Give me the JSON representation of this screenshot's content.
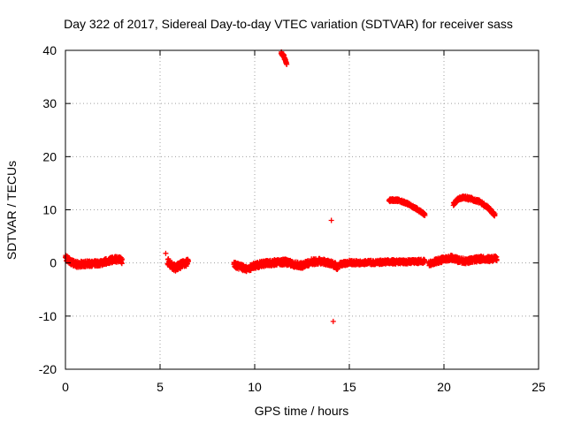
{
  "chart_data": {
    "type": "scatter",
    "title": "Day 322 of 2017, Sidereal Day-to-day VTEC variation (SDTVAR) for receiver sass",
    "xlabel": "GPS time / hours",
    "ylabel": "SDTVAR / TECUs",
    "xlim": [
      0,
      25
    ],
    "ylim": [
      -20,
      40
    ],
    "x_ticks": [
      0,
      5,
      10,
      15,
      20,
      25
    ],
    "y_ticks": [
      -20,
      -10,
      0,
      10,
      20,
      30,
      40
    ],
    "grid": true,
    "marker": "+",
    "marker_color": "#ff0000",
    "series": [
      {
        "name": "SDTVAR",
        "segments": [
          {
            "x": [
              0.0,
              0.3,
              0.6,
              1.0,
              1.4,
              1.8,
              2.2,
              2.5,
              2.8,
              3.0
            ],
            "y": [
              1.0,
              0.2,
              -0.3,
              -0.2,
              -0.1,
              0.0,
              0.3,
              0.6,
              0.7,
              0.4
            ],
            "spread": 1.1
          },
          {
            "x": [
              5.4,
              5.6,
              5.8,
              6.0,
              6.2,
              6.5
            ],
            "y": [
              0.3,
              -0.5,
              -0.9,
              -0.6,
              -0.2,
              0.2
            ],
            "spread": 1.3
          },
          {
            "x": [
              8.9,
              9.3,
              9.6,
              10.0,
              10.4,
              10.8,
              11.2,
              11.6,
              12.0,
              12.5,
              13.0,
              13.5,
              14.0,
              14.4
            ],
            "y": [
              -0.3,
              -0.8,
              -1.2,
              -0.5,
              -0.2,
              0.0,
              0.1,
              0.2,
              -0.2,
              -0.5,
              0.2,
              0.3,
              0.0,
              -0.8
            ],
            "spread": 1.1
          },
          {
            "x": [
              14.5,
              15.0,
              15.5,
              16.0,
              16.5,
              17.0,
              17.5,
              18.0,
              18.5,
              19.0
            ],
            "y": [
              -0.3,
              0.1,
              0.0,
              0.1,
              0.1,
              0.2,
              0.2,
              0.2,
              0.3,
              0.3
            ],
            "spread": 0.8
          },
          {
            "x": [
              19.2,
              19.6,
              20.0,
              20.4,
              20.8,
              21.2,
              21.6,
              22.0,
              22.4,
              22.8
            ],
            "y": [
              -0.2,
              0.3,
              0.7,
              1.0,
              0.5,
              0.3,
              0.6,
              0.8,
              0.7,
              0.9
            ],
            "spread": 1.0
          },
          {
            "x": [
              11.4,
              11.55,
              11.7
            ],
            "y": [
              39.5,
              38.8,
              37.5
            ],
            "spread": 0.6
          },
          {
            "x": [
              17.1,
              17.6,
              18.0,
              18.4,
              18.8,
              19.0
            ],
            "y": [
              11.8,
              11.8,
              11.3,
              10.5,
              9.6,
              9.0
            ],
            "spread": 0.5
          },
          {
            "x": [
              20.5,
              20.8,
              21.1,
              21.5,
              21.9,
              22.3,
              22.7
            ],
            "y": [
              11.0,
              12.2,
              12.3,
              12.0,
              11.5,
              10.5,
              9.0
            ],
            "spread": 0.6
          }
        ],
        "isolated": [
          {
            "x": 14.05,
            "y": 8.0
          },
          {
            "x": 14.15,
            "y": -11.0
          },
          {
            "x": 5.3,
            "y": 1.8
          }
        ]
      }
    ]
  }
}
